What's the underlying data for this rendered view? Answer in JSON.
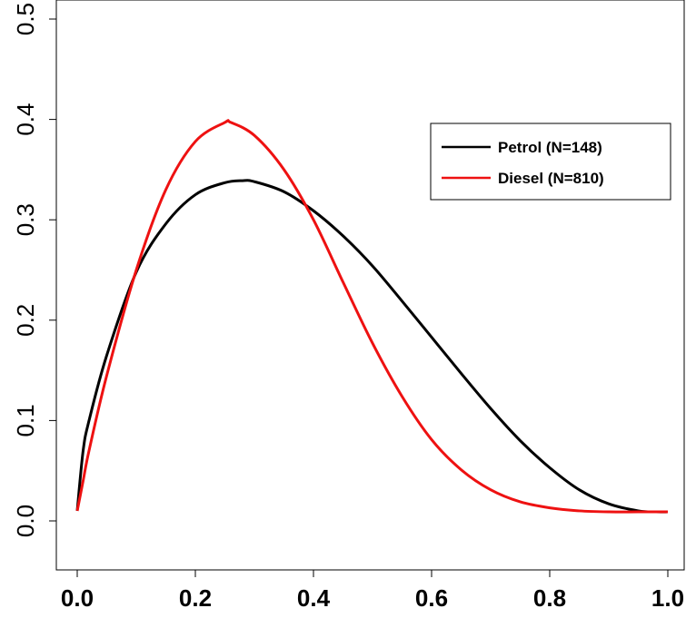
{
  "chart_data": {
    "type": "line",
    "xlim": [
      0.0,
      1.0
    ],
    "ylim": [
      -0.04,
      0.52
    ],
    "x_ticks": [
      "0.0",
      "0.2",
      "0.4",
      "0.6",
      "0.8",
      "1.0"
    ],
    "y_ticks": [
      "0.0",
      "0.1",
      "0.2",
      "0.3",
      "0.4",
      "0.5"
    ],
    "legend_position": "top-right",
    "series": [
      {
        "name": "Petrol (N=148)",
        "color": "#000000",
        "x": [
          0.0,
          0.01,
          0.02,
          0.05,
          0.1,
          0.15,
          0.2,
          0.25,
          0.28,
          0.3,
          0.35,
          0.4,
          0.45,
          0.5,
          0.55,
          0.6,
          0.65,
          0.7,
          0.75,
          0.8,
          0.85,
          0.9,
          0.95,
          0.98,
          1.0
        ],
        "y": [
          0.01,
          0.07,
          0.1,
          0.165,
          0.248,
          0.296,
          0.325,
          0.337,
          0.339,
          0.338,
          0.328,
          0.309,
          0.284,
          0.254,
          0.219,
          0.183,
          0.147,
          0.112,
          0.08,
          0.053,
          0.031,
          0.017,
          0.01,
          0.009,
          0.009
        ]
      },
      {
        "name": "Diesel (N=810)",
        "color": "#ee1111",
        "x": [
          0.0,
          0.01,
          0.02,
          0.05,
          0.1,
          0.15,
          0.2,
          0.25,
          0.26,
          0.3,
          0.35,
          0.4,
          0.45,
          0.5,
          0.55,
          0.6,
          0.65,
          0.7,
          0.75,
          0.8,
          0.85,
          0.9,
          0.95,
          1.0
        ],
        "y": [
          0.01,
          0.04,
          0.07,
          0.145,
          0.25,
          0.33,
          0.378,
          0.397,
          0.397,
          0.384,
          0.35,
          0.3,
          0.238,
          0.177,
          0.124,
          0.081,
          0.051,
          0.031,
          0.019,
          0.013,
          0.01,
          0.009,
          0.009,
          0.009
        ]
      }
    ]
  }
}
